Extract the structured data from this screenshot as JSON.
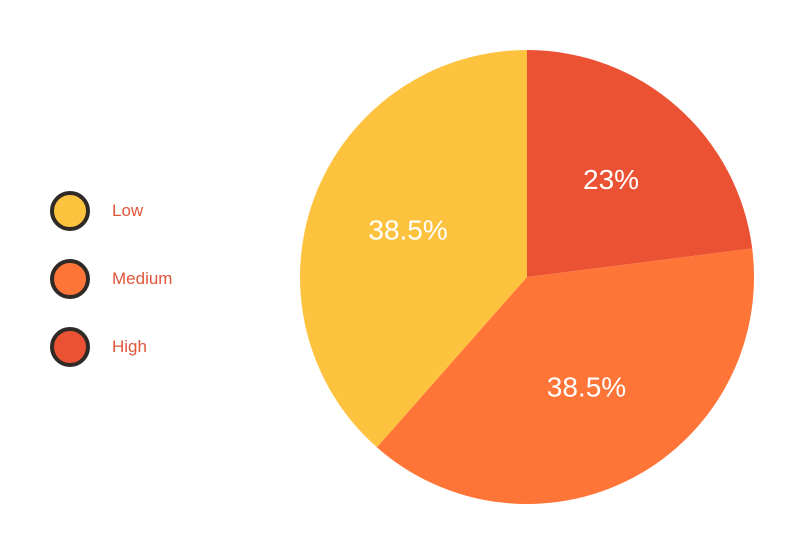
{
  "chart_data": {
    "type": "pie",
    "categories": [
      "Low",
      "Medium",
      "High"
    ],
    "values": [
      38.5,
      38.5,
      23
    ],
    "labels": [
      "38.5%",
      "38.5%",
      "23%"
    ],
    "colors": [
      "#FDC23E",
      "#FF7437",
      "#EB5234"
    ],
    "legend_position": "left"
  },
  "legend": {
    "items": [
      {
        "label": "Low",
        "color": "#FDC23E"
      },
      {
        "label": "Medium",
        "color": "#FF7437"
      },
      {
        "label": "High",
        "color": "#EB5234"
      }
    ]
  }
}
